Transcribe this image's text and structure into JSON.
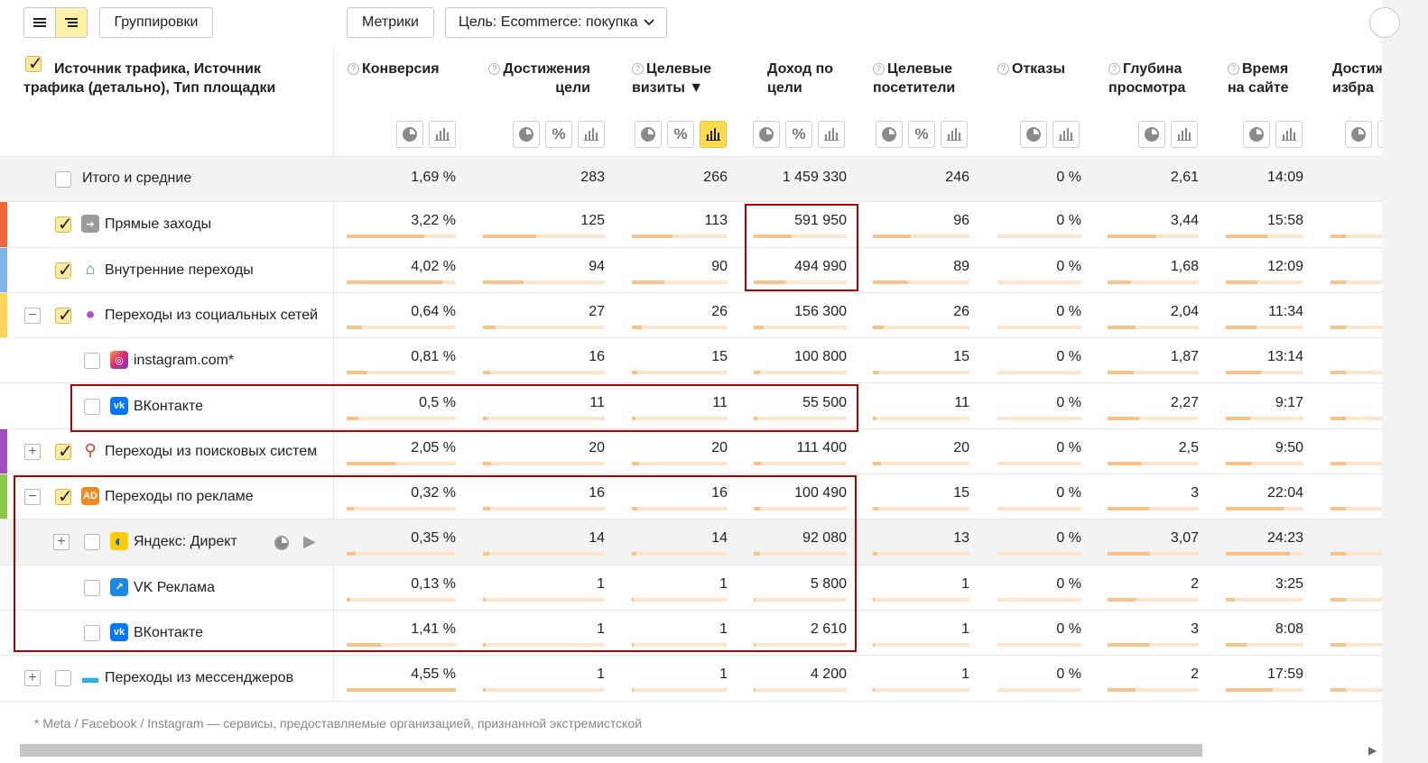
{
  "toolbar": {
    "groupings_label": "Группировки",
    "metrics_label": "Метрики",
    "goal_label": "Цель: Ecommerce: покупка"
  },
  "header": {
    "dim_title": "Источник трафика, Источник трафика (детально), Тип площадки",
    "columns": [
      {
        "label": "Конверсия",
        "q": true
      },
      {
        "label": "Достижения цели",
        "q": true
      },
      {
        "label": "Целевые визиты ▼",
        "q": true
      },
      {
        "label": "Доход по цели",
        "q": false
      },
      {
        "label": "Целевые посетители",
        "q": true
      },
      {
        "label": "Отказы",
        "q": true
      },
      {
        "label": "Глубина просмотра",
        "q": true
      },
      {
        "label": "Время на сайте",
        "q": true
      },
      {
        "label": "Достиж избра",
        "q": false
      }
    ]
  },
  "rows": [
    {
      "label": "Итого и средние",
      "values": [
        "1,69 %",
        "283",
        "266",
        "1 459 330",
        "246",
        "0 %",
        "2,61",
        "14:09"
      ],
      "fills": [],
      "level": 0,
      "checked": false,
      "expander": "",
      "icon": "",
      "strip": "",
      "total": true
    },
    {
      "label": "Прямые заходы",
      "values": [
        "3,22 %",
        "125",
        "113",
        "591 950",
        "96",
        "0 %",
        "3,44",
        "15:58"
      ],
      "fills": [
        0.71,
        0.44,
        0.42,
        0.41,
        0.39,
        0,
        0.53,
        0.54
      ],
      "level": 0,
      "checked": true,
      "expander": "",
      "icon": "arrow",
      "strip": "#f0643c",
      "total": false
    },
    {
      "label": "Внутренние переходы",
      "values": [
        "4,02 %",
        "94",
        "90",
        "494 990",
        "89",
        "0 %",
        "1,68",
        "12:09"
      ],
      "fills": [
        0.88,
        0.33,
        0.34,
        0.34,
        0.36,
        0,
        0.26,
        0.41
      ],
      "level": 0,
      "checked": true,
      "expander": "",
      "icon": "home",
      "strip": "#7fb5e6",
      "total": false
    },
    {
      "label": "Переходы из социальных сетей",
      "values": [
        "0,64 %",
        "27",
        "26",
        "156 300",
        "26",
        "0 %",
        "2,04",
        "11:34"
      ],
      "fills": [
        0.14,
        0.1,
        0.1,
        0.11,
        0.11,
        0,
        0.31,
        0.39
      ],
      "level": 0,
      "checked": true,
      "expander": "−",
      "icon": "person",
      "strip": "#ffd45a",
      "total": false
    },
    {
      "label": "instagram.com*",
      "values": [
        "0,81 %",
        "16",
        "15",
        "100 800",
        "15",
        "0 %",
        "1,87",
        "13:14"
      ],
      "fills": [
        0.18,
        0.06,
        0.06,
        0.07,
        0.06,
        0,
        0.29,
        0.45
      ],
      "level": 1,
      "checked": false,
      "expander": "",
      "icon": "instagram",
      "strip": "",
      "total": false
    },
    {
      "label": "ВКонтакте",
      "values": [
        "0,5 %",
        "11",
        "11",
        "55 500",
        "11",
        "0 %",
        "2,27",
        "9:17"
      ],
      "fills": [
        0.11,
        0.04,
        0.04,
        0.04,
        0.04,
        0,
        0.35,
        0.31
      ],
      "level": 1,
      "checked": false,
      "expander": "",
      "icon": "vk",
      "strip": "",
      "total": false
    },
    {
      "label": "Переходы из поисковых систем",
      "values": [
        "2,05 %",
        "20",
        "20",
        "111 400",
        "20",
        "0 %",
        "2,5",
        "9:50"
      ],
      "fills": [
        0.45,
        0.07,
        0.08,
        0.08,
        0.08,
        0,
        0.38,
        0.33
      ],
      "level": 0,
      "checked": true,
      "expander": "+",
      "icon": "search",
      "strip": "#a04fbf",
      "total": false
    },
    {
      "label": "Переходы по рекламе",
      "values": [
        "0,32 %",
        "16",
        "16",
        "100 490",
        "15",
        "0 %",
        "3",
        "22:04"
      ],
      "fills": [
        0.07,
        0.06,
        0.06,
        0.07,
        0.06,
        0,
        0.46,
        0.74
      ],
      "level": 0,
      "checked": true,
      "expander": "−",
      "icon": "ad",
      "strip": "#8cc94b",
      "total": false
    },
    {
      "label": "Яндекс: Директ",
      "values": [
        "0,35 %",
        "14",
        "14",
        "92 080",
        "13",
        "0 %",
        "3,07",
        "24:23"
      ],
      "fills": [
        0.08,
        0.05,
        0.05,
        0.06,
        0.05,
        0,
        0.47,
        0.82
      ],
      "level": 1,
      "checked": false,
      "expander": "+",
      "icon": "direct",
      "strip": "",
      "total": false,
      "hovered": true
    },
    {
      "label": "VK Реклама",
      "values": [
        "0,13 %",
        "1",
        "1",
        "5 800",
        "1",
        "0 %",
        "2",
        "3:25"
      ],
      "fills": [
        0.03,
        0.004,
        0.004,
        0.004,
        0.004,
        0,
        0.31,
        0.12
      ],
      "level": 1,
      "checked": false,
      "expander": "",
      "icon": "vkads",
      "strip": "",
      "total": false
    },
    {
      "label": "ВКонтакте",
      "values": [
        "1,41 %",
        "1",
        "1",
        "2 610",
        "1",
        "0 %",
        "3",
        "8:08"
      ],
      "fills": [
        0.31,
        0.004,
        0.004,
        0.002,
        0.004,
        0,
        0.46,
        0.27
      ],
      "level": 1,
      "checked": false,
      "expander": "",
      "icon": "vk",
      "strip": "",
      "total": false
    },
    {
      "label": "Переходы из мессенджеров",
      "values": [
        "4,55 %",
        "1",
        "1",
        "4 200",
        "1",
        "0 %",
        "2",
        "17:59"
      ],
      "fills": [
        1.0,
        0.004,
        0.004,
        0.003,
        0.004,
        0,
        0.31,
        0.6
      ],
      "level": 0,
      "checked": false,
      "expander": "+",
      "icon": "chat",
      "strip": "",
      "total": false
    }
  ],
  "footnote": "* Meta / Facebook / Instagram — сервисы, предоставляемые организацией, признанной экстремистской",
  "colors": {
    "highlight": "#b00000",
    "bar_fill": "#f7c389",
    "bar_track": "#fde6cc",
    "selected": "#ffdb4d"
  }
}
